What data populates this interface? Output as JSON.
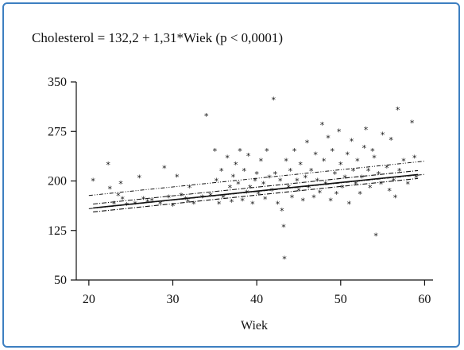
{
  "chart_data": {
    "type": "scatter",
    "title": "Cholesterol = 132,2 + 1,31*Wiek (p < 0,0001)",
    "xlabel": "Wiek",
    "ylabel": "",
    "xlim": [
      18.5,
      61
    ],
    "ylim": [
      50,
      350
    ],
    "xticks": [
      "20",
      "30",
      "40",
      "50",
      "60"
    ],
    "yticks": [
      "50",
      "125",
      "200",
      "275",
      "350"
    ],
    "regression": {
      "intercept": 132.2,
      "slope": 1.31
    },
    "confidence_band": {
      "lower_intercept": 126.2,
      "lower_slope": 1.31,
      "upper_intercept": 138.2,
      "upper_slope": 1.31
    },
    "prediction_band": {
      "lower_at_20": 158,
      "lower_at_60": 210,
      "upper_at_20": 178,
      "upper_at_60": 230
    },
    "marker": "*",
    "points": [
      [
        20.5,
        200
      ],
      [
        22.3,
        225
      ],
      [
        22.5,
        188
      ],
      [
        23.0,
        165
      ],
      [
        23.5,
        178
      ],
      [
        23.8,
        196
      ],
      [
        24.0,
        172
      ],
      [
        24.5,
        163
      ],
      [
        25.5,
        165
      ],
      [
        26.0,
        205
      ],
      [
        26.5,
        172
      ],
      [
        27.0,
        168
      ],
      [
        27.5,
        170
      ],
      [
        28.5,
        165
      ],
      [
        29.0,
        219
      ],
      [
        29.5,
        175
      ],
      [
        30.0,
        162
      ],
      [
        30.5,
        206
      ],
      [
        31.0,
        178
      ],
      [
        31.5,
        172
      ],
      [
        31.8,
        168
      ],
      [
        32.0,
        190
      ],
      [
        32.5,
        165
      ],
      [
        33.5,
        175
      ],
      [
        34.0,
        298
      ],
      [
        34.5,
        178
      ],
      [
        35.0,
        245
      ],
      [
        35.2,
        200
      ],
      [
        35.5,
        165
      ],
      [
        35.8,
        215
      ],
      [
        36.0,
        175
      ],
      [
        36.5,
        235
      ],
      [
        36.8,
        190
      ],
      [
        37.0,
        168
      ],
      [
        37.2,
        206
      ],
      [
        37.5,
        225
      ],
      [
        37.8,
        195
      ],
      [
        38.0,
        245
      ],
      [
        38.3,
        170
      ],
      [
        38.5,
        215
      ],
      [
        38.8,
        182
      ],
      [
        39.0,
        238
      ],
      [
        39.2,
        190
      ],
      [
        39.5,
        165
      ],
      [
        39.8,
        200
      ],
      [
        40.0,
        210
      ],
      [
        40.2,
        180
      ],
      [
        40.5,
        230
      ],
      [
        40.8,
        195
      ],
      [
        41.0,
        172
      ],
      [
        41.2,
        245
      ],
      [
        41.5,
        205
      ],
      [
        41.8,
        185
      ],
      [
        42.0,
        323
      ],
      [
        42.2,
        210
      ],
      [
        42.5,
        165
      ],
      [
        42.8,
        200
      ],
      [
        43.0,
        155
      ],
      [
        43.2,
        130
      ],
      [
        43.3,
        82
      ],
      [
        43.5,
        230
      ],
      [
        43.8,
        190
      ],
      [
        44.0,
        215
      ],
      [
        44.2,
        175
      ],
      [
        44.5,
        245
      ],
      [
        44.8,
        200
      ],
      [
        45.0,
        185
      ],
      [
        45.2,
        225
      ],
      [
        45.5,
        170
      ],
      [
        45.8,
        205
      ],
      [
        46.0,
        258
      ],
      [
        46.2,
        190
      ],
      [
        46.5,
        215
      ],
      [
        46.8,
        175
      ],
      [
        47.0,
        240
      ],
      [
        47.2,
        200
      ],
      [
        47.5,
        182
      ],
      [
        47.8,
        285
      ],
      [
        48.0,
        230
      ],
      [
        48.2,
        195
      ],
      [
        48.5,
        265
      ],
      [
        48.8,
        170
      ],
      [
        49.0,
        245
      ],
      [
        49.3,
        210
      ],
      [
        49.5,
        180
      ],
      [
        49.8,
        275
      ],
      [
        50.0,
        225
      ],
      [
        50.2,
        190
      ],
      [
        50.5,
        205
      ],
      [
        50.8,
        240
      ],
      [
        51.0,
        165
      ],
      [
        51.3,
        260
      ],
      [
        51.5,
        215
      ],
      [
        51.8,
        195
      ],
      [
        52.0,
        230
      ],
      [
        52.3,
        180
      ],
      [
        52.5,
        205
      ],
      [
        52.8,
        250
      ],
      [
        53.0,
        278
      ],
      [
        53.3,
        215
      ],
      [
        53.5,
        190
      ],
      [
        53.8,
        245
      ],
      [
        54.0,
        235
      ],
      [
        54.2,
        117
      ],
      [
        54.5,
        210
      ],
      [
        54.8,
        195
      ],
      [
        55.0,
        270
      ],
      [
        55.5,
        220
      ],
      [
        55.8,
        185
      ],
      [
        56.0,
        262
      ],
      [
        56.3,
        200
      ],
      [
        56.5,
        175
      ],
      [
        56.8,
        308
      ],
      [
        57.0,
        215
      ],
      [
        57.5,
        230
      ],
      [
        58.0,
        195
      ],
      [
        58.5,
        288
      ],
      [
        58.8,
        235
      ],
      [
        59.0,
        205
      ]
    ]
  }
}
